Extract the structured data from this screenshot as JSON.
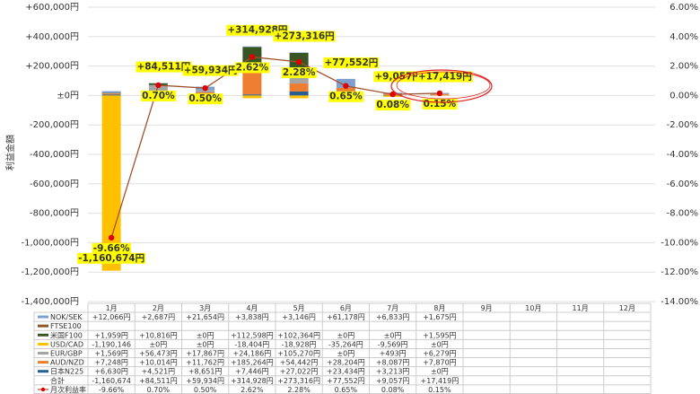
{
  "chart_data": {
    "type": "bar",
    "ylabel": "利益金額",
    "categories": [
      "1月",
      "2月",
      "3月",
      "4月",
      "5月",
      "6月",
      "7月",
      "8月",
      "9月",
      "10月",
      "11月",
      "12月"
    ],
    "ylim": [
      -1400000,
      600000
    ],
    "yticks": [
      {
        "value": 600000,
        "label": "+600,000円"
      },
      {
        "value": 400000,
        "label": "+400,000円"
      },
      {
        "value": 200000,
        "label": "+200,000円"
      },
      {
        "value": 0,
        "label": "±0円"
      },
      {
        "value": -200000,
        "label": "-200,000円"
      },
      {
        "value": -400000,
        "label": "-400,000円"
      },
      {
        "value": -600000,
        "label": "-600,000円"
      },
      {
        "value": -800000,
        "label": "-800,000円"
      },
      {
        "value": -1000000,
        "label": "-1,000,000円"
      },
      {
        "value": -1200000,
        "label": "-1,200,000円"
      },
      {
        "value": -1400000,
        "label": "-1,400,000円"
      }
    ],
    "y2lim": [
      -14,
      6
    ],
    "y2ticks": [
      {
        "value": 6,
        "label": "6.00%"
      },
      {
        "value": 4,
        "label": "4.00%"
      },
      {
        "value": 2,
        "label": "2.00%"
      },
      {
        "value": 0,
        "label": "0.00%"
      },
      {
        "value": -2,
        "label": "-2.00%"
      },
      {
        "value": -4,
        "label": "-4.00%"
      },
      {
        "value": -6,
        "label": "-6.00%"
      },
      {
        "value": -8,
        "label": "-8.00%"
      },
      {
        "value": -10,
        "label": "-10.00%"
      },
      {
        "value": -12,
        "label": "-12.00%"
      },
      {
        "value": -14,
        "label": "-14.00%"
      }
    ],
    "grid": true,
    "series": [
      {
        "name": "NOK/SEK",
        "color": "#7f9fcf",
        "values": [
          12066,
          2687,
          21654,
          3838,
          3146,
          61178,
          6833,
          1675,
          null,
          null,
          null,
          null
        ],
        "value_labels": [
          "+12,066円",
          "+2,687円",
          "+21,654円",
          "+3,838円",
          "+3,146円",
          "+61,178円",
          "+6,833円",
          "+1,675円",
          null,
          null,
          null,
          null
        ]
      },
      {
        "name": "FTSE100",
        "color": "#8b5a2b",
        "values": [
          null,
          null,
          null,
          null,
          null,
          null,
          null,
          null,
          null,
          null,
          null,
          null
        ],
        "value_labels": [
          null,
          null,
          null,
          null,
          null,
          null,
          null,
          null,
          null,
          null,
          null,
          null
        ]
      },
      {
        "name": "米国F100",
        "color": "#375623",
        "values": [
          1959,
          10816,
          0,
          112598,
          102364,
          0,
          0,
          1595,
          null,
          null,
          null,
          null
        ],
        "value_labels": [
          "+1,959円",
          "+10,816円",
          "±0円",
          "+112,598円",
          "+102,364円",
          "±0円",
          "±0円",
          "+1,595円",
          null,
          null,
          null,
          null
        ]
      },
      {
        "name": "USD/CAD",
        "color": "#ffc000",
        "values": [
          -1190146,
          0,
          0,
          -18404,
          -18928,
          -35264,
          -9569,
          0,
          null,
          null,
          null,
          null
        ],
        "value_labels": [
          "-1,190,146",
          "±0円",
          "±0円",
          "-18,404円",
          "-18,928円",
          "-35,264円",
          "-9,569円",
          "±0円",
          null,
          null,
          null,
          null
        ]
      },
      {
        "name": "EUR/GBP",
        "color": "#a5a5a5",
        "values": [
          1569,
          56473,
          17867,
          24186,
          105270,
          0,
          493,
          6279,
          null,
          null,
          null,
          null
        ],
        "value_labels": [
          "+1,569円",
          "+56,473円",
          "+17,867円",
          "+24,186円",
          "+105,270円",
          "±0円",
          "+493円",
          "+6,279円",
          null,
          null,
          null,
          null
        ]
      },
      {
        "name": "AUD/NZD",
        "color": "#ed7d31",
        "values": [
          7248,
          10014,
          11762,
          185264,
          54442,
          28204,
          8087,
          7870,
          null,
          null,
          null,
          null
        ],
        "value_labels": [
          "+7,248円",
          "+10,014円",
          "+11,762円",
          "+185,264円",
          "+54,442円",
          "+28,204円",
          "+8,087円",
          "+7,870円",
          null,
          null,
          null,
          null
        ]
      },
      {
        "name": "日本N225",
        "color": "#255e91",
        "values": [
          6630,
          4521,
          8651,
          7446,
          27022,
          23434,
          3213,
          0,
          null,
          null,
          null,
          null
        ],
        "value_labels": [
          "+6,630円",
          "+4,521円",
          "+8,651円",
          "+7,446円",
          "+27,022円",
          "+23,434円",
          "+3,213円",
          "±0円",
          null,
          null,
          null,
          null
        ]
      }
    ],
    "total": {
      "name": "合計",
      "values": [
        -1160674,
        84511,
        59934,
        314928,
        273316,
        77552,
        9057,
        17419,
        null,
        null,
        null,
        null
      ],
      "value_labels": [
        "-1,160,674",
        "+84,511円",
        "+59,934円",
        "+314,928円",
        "+273,316円",
        "+77,552円",
        "+9,057円",
        "+17,419円",
        null,
        null,
        null,
        null
      ],
      "data_labels": [
        "-1,160,674円",
        "+84,511円",
        "+59,934円",
        "+314,928円",
        "+273,316円",
        "+77,552円",
        "+9,057円",
        "+17,419円",
        null,
        null,
        null,
        null
      ]
    },
    "rate": {
      "name": "月次利益率",
      "color": "#a0522d",
      "marker_color": "#e00000",
      "axis": "y2",
      "values": [
        -9.66,
        0.7,
        0.5,
        2.62,
        2.28,
        0.65,
        0.08,
        0.15,
        null,
        null,
        null,
        null
      ],
      "value_labels": [
        "-9.66%",
        "0.70%",
        "0.50%",
        "2.62%",
        "2.28%",
        "0.65%",
        "0.08%",
        "0.15%",
        null,
        null,
        null,
        null
      ]
    }
  }
}
